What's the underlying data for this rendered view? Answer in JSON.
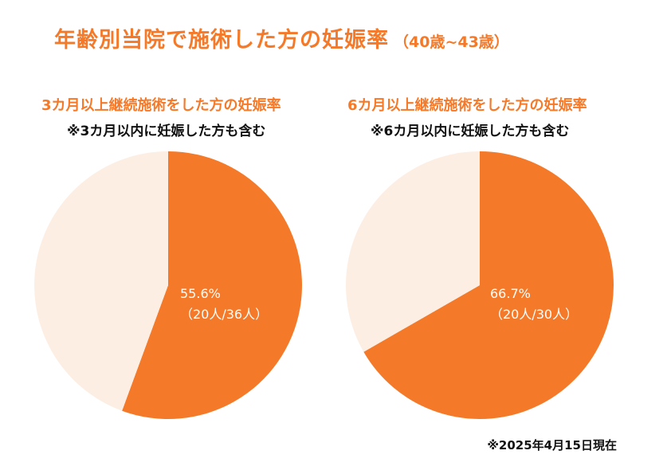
{
  "title": "年齢別当院で施術した方の妊娠率",
  "title_paren": "（40歳~43歳）",
  "colors": {
    "accent": "#f47a2a",
    "remainder": "#fdeee3",
    "text": "#111111"
  },
  "chart_data": [
    {
      "type": "pie",
      "title": "3カ月以上継続施術をした方の妊娠率",
      "note": "※3カ月以内に妊娠した方も含む",
      "percent_label": "55.6%",
      "count_label": "（20人/36人）",
      "pregnant": 20,
      "total": 36,
      "slices": [
        {
          "value": 55.6,
          "color": "#f47a2a"
        },
        {
          "value": 44.4,
          "color": "#fdeee3"
        }
      ]
    },
    {
      "type": "pie",
      "title": "6カ月以上継続施術をした方の妊娠率",
      "note": "※6カ月以内に妊娠した方も含む",
      "percent_label": "66.7%",
      "count_label": "（20人/30人）",
      "pregnant": 20,
      "total": 30,
      "slices": [
        {
          "value": 66.7,
          "color": "#f47a2a"
        },
        {
          "value": 33.3,
          "color": "#fdeee3"
        }
      ]
    }
  ],
  "footnote": "※2025年4月15日現在"
}
